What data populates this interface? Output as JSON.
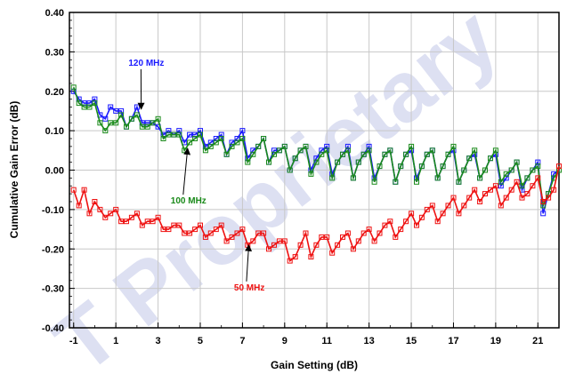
{
  "chart_data": {
    "type": "line",
    "xlabel": "Gain Setting (dB)",
    "ylabel": "Cumulative Gain Error (dB)",
    "xlim": [
      -1.2,
      22.0
    ],
    "ylim": [
      -0.4,
      0.4
    ],
    "x_ticks": [
      -1,
      1,
      3,
      5,
      7,
      9,
      11,
      13,
      15,
      17,
      19,
      21
    ],
    "x_tick_labels": [
      "-1",
      "1",
      "3",
      "5",
      "7",
      "9",
      "11",
      "13",
      "15",
      "17",
      "19",
      "21"
    ],
    "y_ticks": [
      -0.4,
      -0.3,
      -0.2,
      -0.1,
      0.0,
      0.1,
      0.2,
      0.3,
      0.4
    ],
    "y_tick_labels": [
      "-0.40",
      "-0.30",
      "-0.20",
      "-0.10",
      "0.00",
      "0.10",
      "0.20",
      "0.30",
      "0.40"
    ],
    "grid": true,
    "series": [
      {
        "name": "120 MHz",
        "color": "#1a1aff",
        "x": [
          -1.0,
          -0.75,
          -0.5,
          -0.25,
          0.0,
          0.25,
          0.5,
          0.75,
          1.0,
          1.25,
          1.5,
          1.75,
          2.0,
          2.25,
          2.5,
          2.75,
          3.0,
          3.25,
          3.5,
          3.75,
          4.0,
          4.25,
          4.5,
          4.75,
          5.0,
          5.25,
          5.5,
          5.75,
          6.0,
          6.25,
          6.5,
          6.75,
          7.0,
          7.25,
          7.5,
          7.75,
          8.0,
          8.25,
          8.5,
          8.75,
          9.0,
          9.25,
          9.5,
          9.75,
          10.0,
          10.25,
          10.5,
          10.75,
          11.0,
          11.25,
          11.5,
          11.75,
          12.0,
          12.25,
          12.5,
          12.75,
          13.0,
          13.25,
          13.5,
          13.75,
          14.0,
          14.25,
          14.5,
          14.75,
          15.0,
          15.25,
          15.5,
          15.75,
          16.0,
          16.25,
          16.5,
          16.75,
          17.0,
          17.25,
          17.5,
          17.75,
          18.0,
          18.25,
          18.5,
          18.75,
          19.0,
          19.25,
          19.5,
          19.75,
          20.0,
          20.25,
          20.5,
          20.75,
          21.0,
          21.25,
          21.5,
          21.75,
          22.0
        ],
        "y": [
          0.2,
          0.18,
          0.17,
          0.17,
          0.18,
          0.14,
          0.13,
          0.16,
          0.15,
          0.15,
          0.11,
          0.13,
          0.16,
          0.12,
          0.12,
          0.12,
          0.11,
          0.09,
          0.1,
          0.09,
          0.1,
          0.07,
          0.09,
          0.09,
          0.1,
          0.06,
          0.07,
          0.08,
          0.09,
          0.04,
          0.07,
          0.08,
          0.1,
          0.03,
          0.05,
          0.06,
          0.08,
          0.02,
          0.05,
          0.05,
          0.06,
          0.0,
          0.03,
          0.05,
          0.06,
          0.0,
          0.03,
          0.05,
          0.06,
          -0.01,
          0.02,
          0.04,
          0.06,
          -0.02,
          0.02,
          0.04,
          0.06,
          -0.02,
          0.01,
          0.04,
          0.05,
          -0.03,
          0.01,
          0.04,
          0.05,
          -0.02,
          0.01,
          0.04,
          0.05,
          -0.02,
          0.01,
          0.04,
          0.05,
          -0.03,
          0.0,
          0.03,
          0.04,
          -0.02,
          0.0,
          0.03,
          0.04,
          -0.04,
          -0.02,
          0.0,
          0.02,
          -0.05,
          -0.02,
          0.0,
          0.02,
          -0.11,
          -0.06,
          -0.01,
          0.0
        ],
        "label": "120 MHz",
        "label_color": "#1a1aff"
      },
      {
        "name": "100 MHz",
        "color": "#1a8a1a",
        "x": [
          -1.0,
          -0.75,
          -0.5,
          -0.25,
          0.0,
          0.25,
          0.5,
          0.75,
          1.0,
          1.25,
          1.5,
          1.75,
          2.0,
          2.25,
          2.5,
          2.75,
          3.0,
          3.25,
          3.5,
          3.75,
          4.0,
          4.25,
          4.5,
          4.75,
          5.0,
          5.25,
          5.5,
          5.75,
          6.0,
          6.25,
          6.5,
          6.75,
          7.0,
          7.25,
          7.5,
          7.75,
          8.0,
          8.25,
          8.5,
          8.75,
          9.0,
          9.25,
          9.5,
          9.75,
          10.0,
          10.25,
          10.5,
          10.75,
          11.0,
          11.25,
          11.5,
          11.75,
          12.0,
          12.25,
          12.5,
          12.75,
          13.0,
          13.25,
          13.5,
          13.75,
          14.0,
          14.25,
          14.5,
          14.75,
          15.0,
          15.25,
          15.5,
          15.75,
          16.0,
          16.25,
          16.5,
          16.75,
          17.0,
          17.25,
          17.5,
          17.75,
          18.0,
          18.25,
          18.5,
          18.75,
          19.0,
          19.25,
          19.5,
          19.75,
          20.0,
          20.25,
          20.5,
          20.75,
          21.0,
          21.25,
          21.5,
          21.75,
          22.0
        ],
        "y": [
          0.21,
          0.17,
          0.16,
          0.16,
          0.17,
          0.12,
          0.1,
          0.12,
          0.12,
          0.14,
          0.11,
          0.13,
          0.14,
          0.11,
          0.11,
          0.12,
          0.13,
          0.08,
          0.09,
          0.09,
          0.09,
          0.05,
          0.07,
          0.08,
          0.09,
          0.05,
          0.06,
          0.07,
          0.08,
          0.04,
          0.06,
          0.07,
          0.08,
          0.02,
          0.04,
          0.06,
          0.08,
          0.02,
          0.04,
          0.05,
          0.06,
          0.0,
          0.03,
          0.05,
          0.06,
          -0.01,
          0.02,
          0.04,
          0.05,
          -0.02,
          0.02,
          0.04,
          0.05,
          -0.02,
          0.02,
          0.04,
          0.05,
          -0.03,
          0.01,
          0.04,
          0.05,
          -0.03,
          0.01,
          0.04,
          0.06,
          -0.03,
          0.01,
          0.04,
          0.05,
          -0.02,
          0.01,
          0.04,
          0.06,
          -0.03,
          0.0,
          0.03,
          0.05,
          -0.02,
          0.0,
          0.03,
          0.05,
          -0.03,
          -0.01,
          0.0,
          0.02,
          -0.04,
          -0.02,
          0.0,
          0.01,
          -0.09,
          -0.06,
          -0.02,
          0.0
        ],
        "label": "100 MHz",
        "label_color": "#1a8a1a"
      },
      {
        "name": "50 MHz",
        "color": "#ee1111",
        "x": [
          -1.0,
          -0.75,
          -0.5,
          -0.25,
          0.0,
          0.25,
          0.5,
          0.75,
          1.0,
          1.25,
          1.5,
          1.75,
          2.0,
          2.25,
          2.5,
          2.75,
          3.0,
          3.25,
          3.5,
          3.75,
          4.0,
          4.25,
          4.5,
          4.75,
          5.0,
          5.25,
          5.5,
          5.75,
          6.0,
          6.25,
          6.5,
          6.75,
          7.0,
          7.25,
          7.5,
          7.75,
          8.0,
          8.25,
          8.5,
          8.75,
          9.0,
          9.25,
          9.5,
          9.75,
          10.0,
          10.25,
          10.5,
          10.75,
          11.0,
          11.25,
          11.5,
          11.75,
          12.0,
          12.25,
          12.5,
          12.75,
          13.0,
          13.25,
          13.5,
          13.75,
          14.0,
          14.25,
          14.5,
          14.75,
          15.0,
          15.25,
          15.5,
          15.75,
          16.0,
          16.25,
          16.5,
          16.75,
          17.0,
          17.25,
          17.5,
          17.75,
          18.0,
          18.25,
          18.5,
          18.75,
          19.0,
          19.25,
          19.5,
          19.75,
          20.0,
          20.25,
          20.5,
          20.75,
          21.0,
          21.25,
          21.5,
          21.75,
          22.0
        ],
        "y": [
          -0.05,
          -0.09,
          -0.05,
          -0.11,
          -0.08,
          -0.1,
          -0.12,
          -0.11,
          -0.1,
          -0.13,
          -0.13,
          -0.12,
          -0.11,
          -0.14,
          -0.13,
          -0.13,
          -0.12,
          -0.15,
          -0.15,
          -0.14,
          -0.14,
          -0.16,
          -0.16,
          -0.15,
          -0.14,
          -0.17,
          -0.16,
          -0.15,
          -0.14,
          -0.18,
          -0.17,
          -0.16,
          -0.15,
          -0.19,
          -0.18,
          -0.16,
          -0.16,
          -0.2,
          -0.19,
          -0.18,
          -0.18,
          -0.23,
          -0.22,
          -0.19,
          -0.16,
          -0.22,
          -0.19,
          -0.17,
          -0.17,
          -0.21,
          -0.19,
          -0.17,
          -0.16,
          -0.2,
          -0.18,
          -0.16,
          -0.15,
          -0.18,
          -0.16,
          -0.14,
          -0.13,
          -0.17,
          -0.15,
          -0.13,
          -0.11,
          -0.14,
          -0.12,
          -0.1,
          -0.09,
          -0.13,
          -0.11,
          -0.09,
          -0.07,
          -0.11,
          -0.09,
          -0.07,
          -0.05,
          -0.08,
          -0.06,
          -0.05,
          -0.04,
          -0.09,
          -0.07,
          -0.05,
          -0.03,
          -0.07,
          -0.06,
          -0.04,
          -0.02,
          -0.08,
          -0.07,
          -0.05,
          0.01
        ],
        "label": "50 MHz",
        "label_color": "#ee1111"
      }
    ],
    "annotations": [
      {
        "text": "120 MHz",
        "color": "#1a1aff",
        "label_x": 1.6,
        "label_y": 0.265,
        "arrow_x": 2.2,
        "arrow_y": 0.155
      },
      {
        "text": "100 MHz",
        "color": "#1a8a1a",
        "label_x": 3.6,
        "label_y": -0.085,
        "arrow_x": 4.4,
        "arrow_y": 0.055
      },
      {
        "text": "50 MHz",
        "color": "#ee1111",
        "label_x": 6.6,
        "label_y": -0.305,
        "arrow_x": 7.3,
        "arrow_y": -0.19
      }
    ]
  },
  "watermark": "T Proprietary"
}
